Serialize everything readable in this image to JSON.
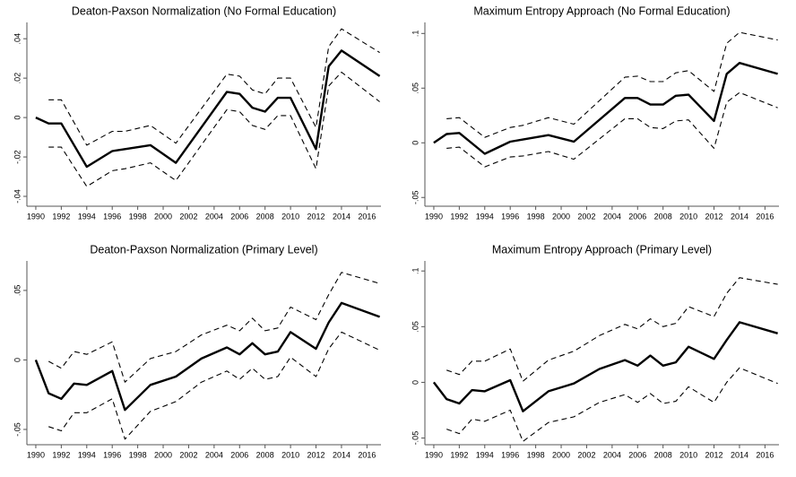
{
  "chart_data": [
    {
      "type": "line",
      "title": "Deaton-Paxson Normalization (No Formal Education)",
      "x": [
        1990,
        1991,
        1992,
        1994,
        1996,
        1997,
        1999,
        2001,
        2005,
        2006,
        2007,
        2008,
        2009,
        2010,
        2012,
        2013,
        2014,
        2017
      ],
      "series": [
        {
          "color": "#000000",
          "style": "solid",
          "values": [
            0,
            -0.003,
            -0.003,
            -0.025,
            -0.017,
            -0.016,
            -0.014,
            -0.023,
            0.013,
            0.012,
            0.005,
            0.003,
            0.01,
            0.01,
            -0.016,
            0.026,
            0.034,
            0.021
          ]
        },
        {
          "color": "#000000",
          "style": "dashed",
          "values": [
            null,
            0.009,
            0.009,
            -0.014,
            -0.007,
            -0.007,
            -0.004,
            -0.013,
            0.022,
            0.021,
            0.014,
            0.012,
            0.02,
            0.02,
            -0.005,
            0.036,
            0.045,
            0.033
          ]
        },
        {
          "color": "#000000",
          "style": "dashed",
          "values": [
            null,
            -0.015,
            -0.015,
            -0.035,
            -0.027,
            -0.026,
            -0.023,
            -0.032,
            0.004,
            0.003,
            -0.004,
            -0.006,
            0.001,
            0.001,
            -0.026,
            0.016,
            0.023,
            0.008
          ]
        }
      ],
      "xlim": [
        1989.3,
        2017.1
      ],
      "xticks": [
        1990,
        1992,
        1994,
        1996,
        1998,
        2000,
        2002,
        2004,
        2006,
        2008,
        2010,
        2012,
        2014,
        2016
      ],
      "ylim": [
        -0.045,
        0.046
      ],
      "yticks": [
        {
          "value": -0.04,
          "label": "-.04"
        },
        {
          "value": -0.02,
          "label": "-.02"
        },
        0,
        {
          "value": 0.02,
          "label": ".02"
        },
        {
          "value": 0.04,
          "label": ".04"
        }
      ]
    },
    {
      "type": "line",
      "title": "Maximum Entropy Approach (No Formal Education)",
      "x": [
        1990,
        1991,
        1992,
        1994,
        1996,
        1997,
        1999,
        2001,
        2005,
        2006,
        2007,
        2008,
        2009,
        2010,
        2012,
        2013,
        2014,
        2017
      ],
      "series": [
        {
          "color": "#000000",
          "style": "solid",
          "values": [
            0,
            0.008,
            0.009,
            -0.01,
            0.001,
            0.003,
            0.007,
            0.001,
            0.041,
            0.041,
            0.035,
            0.035,
            0.043,
            0.044,
            0.02,
            0.063,
            0.073,
            0.063
          ]
        },
        {
          "color": "#000000",
          "style": "dashed",
          "values": [
            null,
            0.022,
            0.023,
            0.005,
            0.014,
            0.016,
            0.023,
            0.017,
            0.06,
            0.061,
            0.056,
            0.056,
            0.064,
            0.066,
            0.047,
            0.091,
            0.101,
            0.094
          ]
        },
        {
          "color": "#000000",
          "style": "dashed",
          "values": [
            null,
            -0.005,
            -0.004,
            -0.022,
            -0.013,
            -0.012,
            -0.008,
            -0.015,
            0.022,
            0.022,
            0.014,
            0.013,
            0.02,
            0.021,
            -0.005,
            0.037,
            0.046,
            0.032
          ]
        }
      ],
      "xlim": [
        1989.3,
        2017.1
      ],
      "xticks": [
        1990,
        1992,
        1994,
        1996,
        1998,
        2000,
        2002,
        2004,
        2006,
        2008,
        2010,
        2012,
        2014,
        2016
      ],
      "ylim": [
        -0.058,
        0.106
      ],
      "yticks": [
        {
          "value": -0.05,
          "label": "-.05"
        },
        0,
        {
          "value": 0.05,
          "label": ".05"
        },
        {
          "value": 0.1,
          "label": ".1"
        }
      ]
    },
    {
      "type": "line",
      "title": "Deaton-Paxson Normalization (Primary Level)",
      "x": [
        1990,
        1991,
        1992,
        1993,
        1994,
        1996,
        1997,
        1999,
        2001,
        2003,
        2005,
        2006,
        2007,
        2008,
        2009,
        2010,
        2012,
        2013,
        2014,
        2017
      ],
      "series": [
        {
          "color": "#000000",
          "style": "solid",
          "values": [
            0,
            -0.024,
            -0.028,
            -0.017,
            -0.018,
            -0.008,
            -0.036,
            -0.018,
            -0.012,
            0.001,
            0.009,
            0.004,
            0.012,
            0.004,
            0.006,
            0.02,
            0.008,
            0.027,
            0.041,
            0.031
          ]
        },
        {
          "color": "#000000",
          "style": "dashed",
          "values": [
            null,
            -0.001,
            -0.006,
            0.006,
            0.004,
            0.013,
            -0.016,
            0.001,
            0.006,
            0.018,
            0.025,
            0.021,
            0.03,
            0.021,
            0.023,
            0.038,
            0.029,
            0.047,
            0.063,
            0.055
          ]
        },
        {
          "color": "#000000",
          "style": "dashed",
          "values": [
            null,
            -0.048,
            -0.051,
            -0.038,
            -0.038,
            -0.028,
            -0.057,
            -0.037,
            -0.03,
            -0.016,
            -0.008,
            -0.014,
            -0.006,
            -0.014,
            -0.012,
            0.002,
            -0.012,
            0.008,
            0.02,
            0.007
          ]
        }
      ],
      "xlim": [
        1989.3,
        2017.1
      ],
      "xticks": [
        1990,
        1992,
        1994,
        1996,
        1998,
        2000,
        2002,
        2004,
        2006,
        2008,
        2010,
        2012,
        2014,
        2016
      ],
      "ylim": [
        -0.061,
        0.068
      ],
      "yticks": [
        {
          "value": -0.05,
          "label": "-.05"
        },
        0,
        {
          "value": 0.05,
          "label": ".05"
        }
      ]
    },
    {
      "type": "line",
      "title": "Maximum Entropy Approach (Primary Level)",
      "x": [
        1990,
        1991,
        1992,
        1993,
        1994,
        1996,
        1997,
        1999,
        2001,
        2003,
        2005,
        2006,
        2007,
        2008,
        2009,
        2010,
        2012,
        2013,
        2014,
        2017
      ],
      "series": [
        {
          "color": "#000000",
          "style": "solid",
          "values": [
            0,
            -0.015,
            -0.019,
            -0.007,
            -0.008,
            0.002,
            -0.026,
            -0.008,
            -0.001,
            0.012,
            0.02,
            0.015,
            0.024,
            0.015,
            0.018,
            0.032,
            0.021,
            0.038,
            0.054,
            0.044
          ]
        },
        {
          "color": "#000000",
          "style": "dashed",
          "values": [
            null,
            0.011,
            0.007,
            0.019,
            0.019,
            0.03,
            0.001,
            0.02,
            0.028,
            0.042,
            0.052,
            0.048,
            0.057,
            0.05,
            0.053,
            0.068,
            0.059,
            0.08,
            0.094,
            0.088
          ]
        },
        {
          "color": "#000000",
          "style": "dashed",
          "values": [
            null,
            -0.042,
            -0.046,
            -0.033,
            -0.035,
            -0.025,
            -0.053,
            -0.036,
            -0.031,
            -0.018,
            -0.011,
            -0.018,
            -0.01,
            -0.019,
            -0.017,
            -0.004,
            -0.018,
            0.0,
            0.013,
            -0.001
          ]
        }
      ],
      "xlim": [
        1989.3,
        2017.1
      ],
      "xticks": [
        1990,
        1992,
        1994,
        1996,
        1998,
        2000,
        2002,
        2004,
        2006,
        2008,
        2010,
        2012,
        2014,
        2016
      ],
      "ylim": [
        -0.056,
        0.105
      ],
      "yticks": [
        {
          "value": -0.05,
          "label": "-.05"
        },
        0,
        {
          "value": 0.05,
          "label": ".05"
        },
        {
          "value": 0.1,
          "label": ".1"
        }
      ]
    }
  ]
}
